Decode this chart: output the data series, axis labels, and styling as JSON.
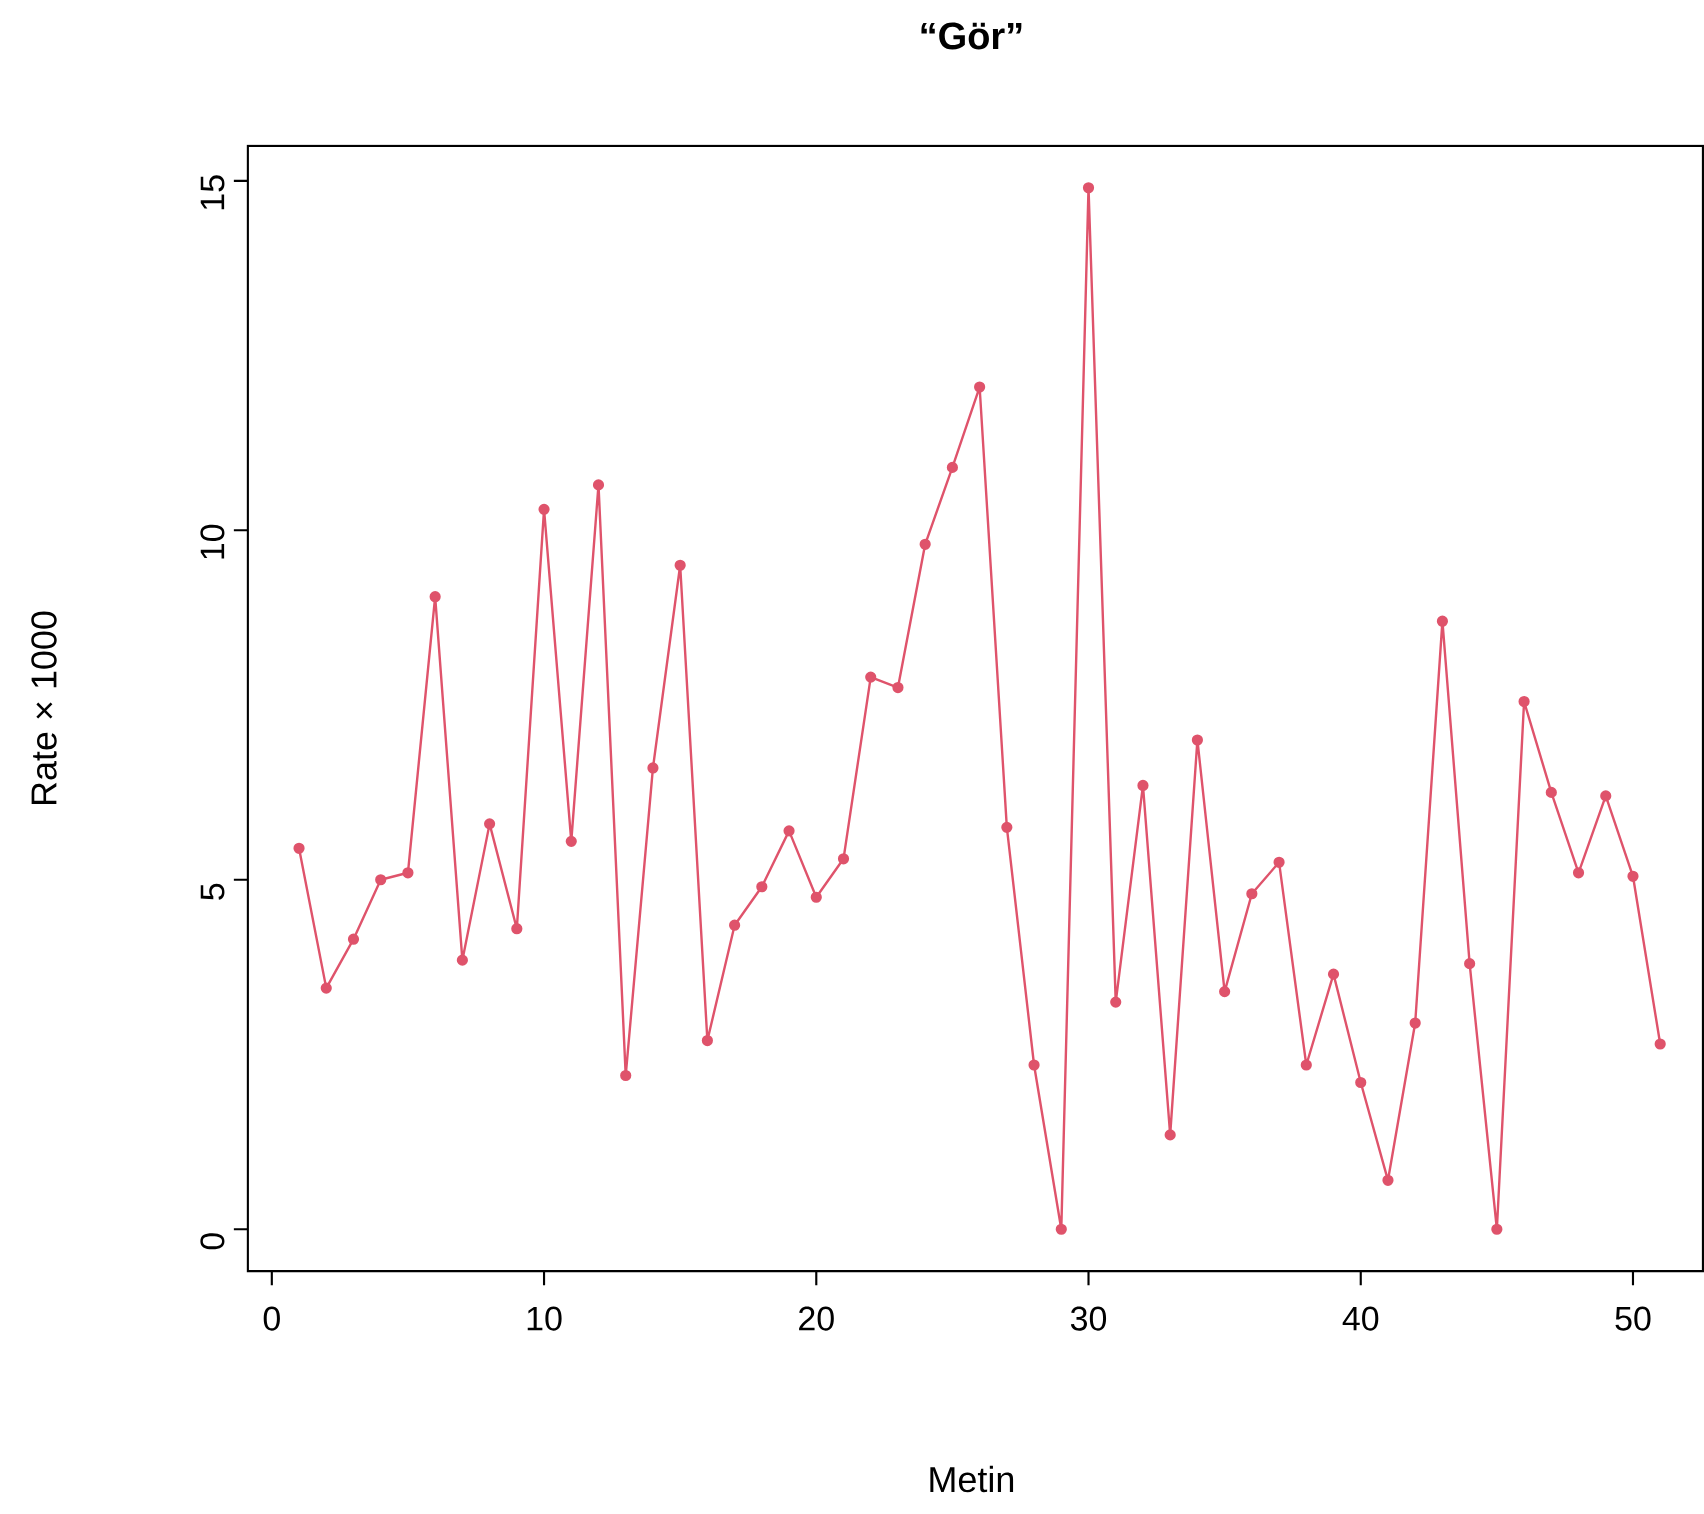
{
  "chart_data": {
    "type": "line",
    "title": "“Gör”",
    "xlabel": "Metin",
    "ylabel": "Rate × 1000",
    "x": [
      1,
      2,
      3,
      4,
      5,
      6,
      7,
      8,
      9,
      10,
      11,
      12,
      13,
      14,
      15,
      16,
      17,
      18,
      19,
      20,
      21,
      22,
      23,
      24,
      25,
      26,
      27,
      28,
      29,
      30,
      31,
      32,
      33,
      34,
      35,
      36,
      37,
      38,
      39,
      40,
      41,
      42,
      43,
      44,
      45,
      46,
      47,
      48,
      49,
      50,
      51
    ],
    "values": [
      5.45,
      3.45,
      4.15,
      5.0,
      5.1,
      9.05,
      3.85,
      5.8,
      4.3,
      10.3,
      5.55,
      10.65,
      2.2,
      6.6,
      9.5,
      2.7,
      4.35,
      4.9,
      5.7,
      4.75,
      5.3,
      7.9,
      7.75,
      9.8,
      10.9,
      12.05,
      5.75,
      2.35,
      0.0,
      14.9,
      3.25,
      6.35,
      1.35,
      7.0,
      3.4,
      4.8,
      5.25,
      2.35,
      3.65,
      2.1,
      0.7,
      2.95,
      8.7,
      3.8,
      0.0,
      7.55,
      6.25,
      5.1,
      6.2,
      5.05,
      2.65
    ],
    "color": "#df536b",
    "marker": "circle",
    "line_style": "solid",
    "xlim": [
      -0.88,
      52.57
    ],
    "ylim": [
      -0.6,
      15.5
    ],
    "xticks": [
      0,
      10,
      20,
      30,
      40,
      50
    ],
    "yticks": [
      0,
      5,
      10,
      15
    ]
  }
}
